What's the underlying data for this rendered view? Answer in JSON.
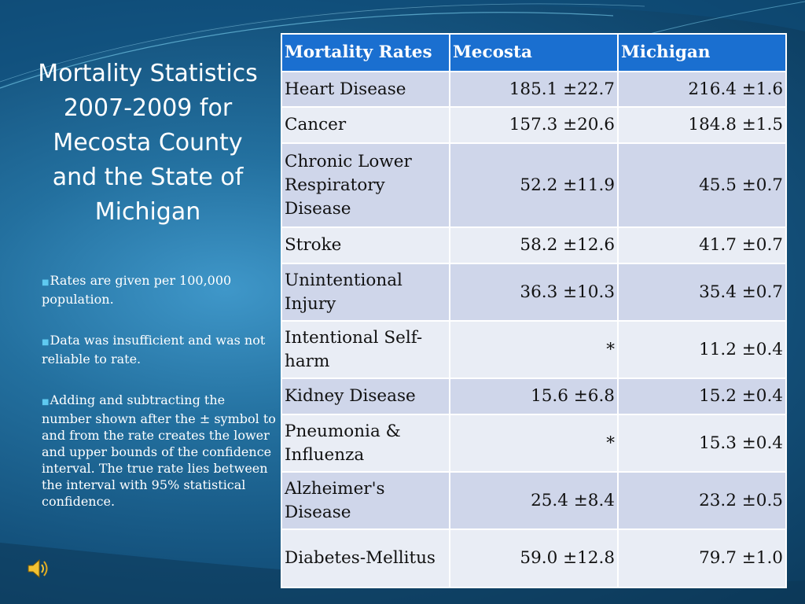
{
  "slide": {
    "title": "Mortality Statistics 2007-2009 for Mecosta County and the State of Michigan",
    "notes": [
      "Rates are given per 100,000 population.",
      "Data was insufficient and was not reliable to rate.",
      "Adding and subtracting the number shown after the ± symbol to and from the rate creates the lower and upper bounds of the confidence interval. The true rate lies between the interval with 95% statistical confidence."
    ]
  },
  "table": {
    "headers": [
      "Mortality Rates",
      "Mecosta",
      "Michigan"
    ],
    "rows": [
      [
        "Heart Disease",
        "185.1 ±22.7",
        "216.4 ±1.6"
      ],
      [
        "Cancer",
        "157.3 ±20.6",
        "184.8 ±1.5"
      ],
      [
        "Chronic Lower Respiratory Disease",
        "52.2 ±11.9",
        "45.5 ±0.7"
      ],
      [
        "Stroke",
        "58.2 ±12.6",
        "41.7 ±0.7"
      ],
      [
        "Unintentional Injury",
        "36.3 ±10.3",
        "35.4 ±0.7"
      ],
      [
        "Intentional Self-harm",
        "*",
        "11.2 ±0.4"
      ],
      [
        "Kidney Disease",
        "15.6 ±6.8",
        "15.2 ±0.4"
      ],
      [
        "Pneumonia & Influenza",
        "*",
        "15.3 ±0.4"
      ],
      [
        "Alzheimer's Disease",
        "25.4 ±8.4",
        "23.2 ±0.5"
      ],
      [
        "Diabetes-Mellitus",
        "59.0 ±12.8",
        "79.7 ±1.0"
      ]
    ]
  },
  "icons": {
    "audio": "speaker-icon",
    "bullet": "square-bullet-icon"
  },
  "colors": {
    "header": "#1a6fd0",
    "row_odd": "#cfd6ea",
    "row_even": "#e9edf5",
    "text_light": "#ffffff"
  }
}
